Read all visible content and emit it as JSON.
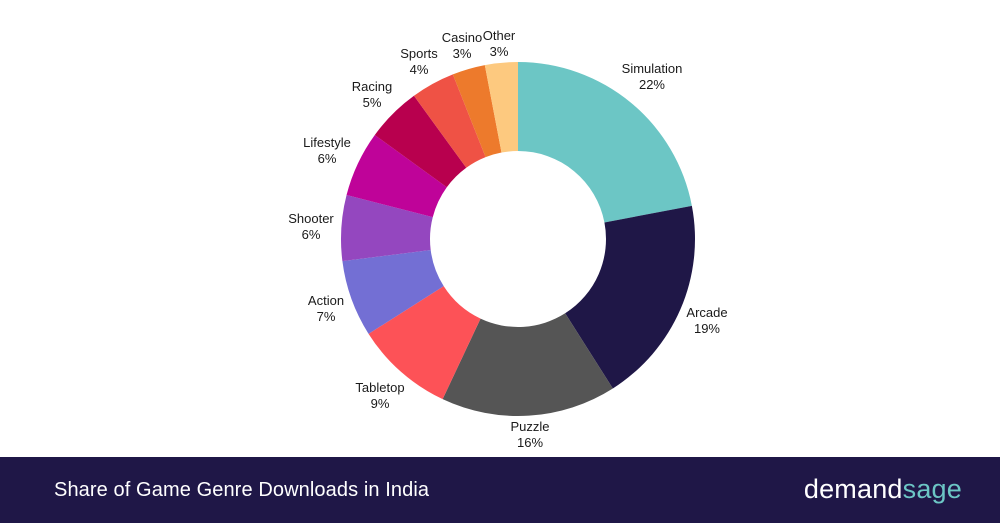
{
  "chart_data": {
    "type": "pie",
    "subtype": "donut",
    "title": "Share of Game Genre Downloads in India",
    "unit": "%",
    "categories": [
      "Simulation",
      "Arcade",
      "Puzzle",
      "Tabletop",
      "Action",
      "Shooter",
      "Lifestyle",
      "Racing",
      "Sports",
      "Casino",
      "Other"
    ],
    "values": [
      22,
      19,
      16,
      9,
      7,
      6,
      6,
      5,
      4,
      3,
      3
    ],
    "colors": [
      "#6cc6c5",
      "#1f1747",
      "#555555",
      "#fd5257",
      "#736fd4",
      "#9447bf",
      "#bf0399",
      "#b8004e",
      "#ef5245",
      "#ed7a2c",
      "#fdc97f"
    ],
    "legend": "none (direct labels)"
  },
  "labels": [
    {
      "name": "Simulation",
      "pct": "22%"
    },
    {
      "name": "Arcade",
      "pct": "19%"
    },
    {
      "name": "Puzzle",
      "pct": "16%"
    },
    {
      "name": "Tabletop",
      "pct": "9%"
    },
    {
      "name": "Action",
      "pct": "7%"
    },
    {
      "name": "Shooter",
      "pct": "6%"
    },
    {
      "name": "Lifestyle",
      "pct": "6%"
    },
    {
      "name": "Racing",
      "pct": "5%"
    },
    {
      "name": "Sports",
      "pct": "4%"
    },
    {
      "name": "Casino",
      "pct": "3%"
    },
    {
      "name": "Other",
      "pct": "3%"
    }
  ],
  "footer": {
    "title": "Share of Game Genre Downloads in India",
    "brand_main": "demand",
    "brand_accent": "sage"
  }
}
